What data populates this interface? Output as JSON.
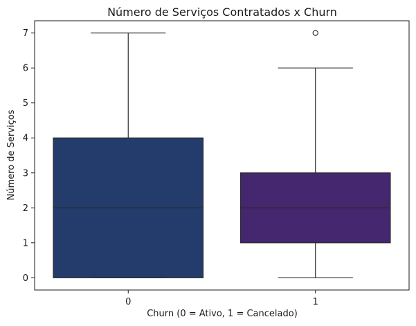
{
  "chart_data": {
    "type": "box",
    "title": "Número de Serviços Contratados x Churn",
    "xlabel": "Churn (0 = Ativo, 1 = Cancelado)",
    "ylabel": "Número de Serviços",
    "ylim": [
      -0.35,
      7.35
    ],
    "yticks": [
      0,
      1,
      2,
      3,
      4,
      5,
      6,
      7
    ],
    "categories": [
      "0",
      "1"
    ],
    "boxes": [
      {
        "category": "0",
        "whisker_low": 0,
        "q1": 0,
        "median": 2,
        "q3": 4,
        "whisker_high": 7,
        "outliers": [],
        "color": "#233c6b"
      },
      {
        "category": "1",
        "whisker_low": 0,
        "q1": 1,
        "median": 2,
        "q3": 3,
        "whisker_high": 6,
        "outliers": [
          7
        ],
        "color": "#44276e"
      }
    ],
    "grid": false
  }
}
